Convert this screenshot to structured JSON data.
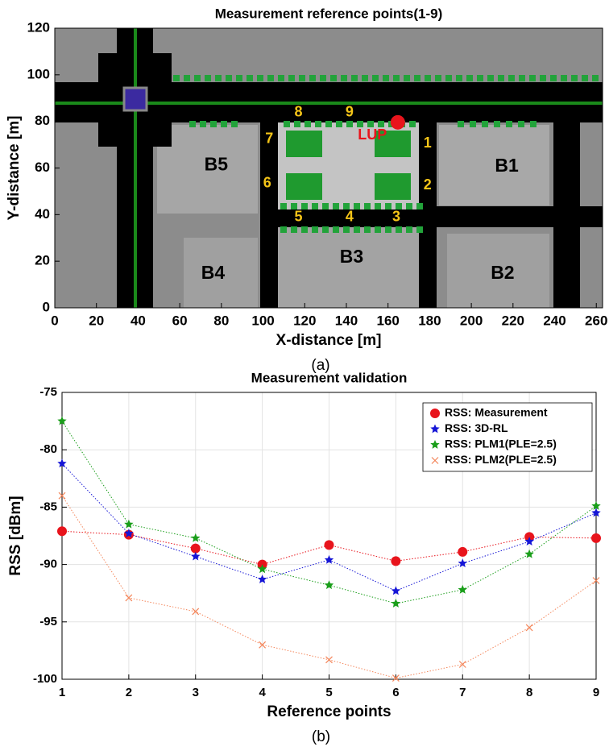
{
  "chart_data": [
    {
      "type": "map",
      "title": "Measurement reference points(1-9)",
      "xlabel": "X-distance [m]",
      "ylabel": "Y-distance [m]",
      "caption": "(a)",
      "xlim": [
        0,
        263
      ],
      "ylim": [
        0,
        120
      ],
      "xticks": [
        0,
        20,
        40,
        60,
        80,
        100,
        120,
        140,
        160,
        180,
        200,
        220,
        240,
        260
      ],
      "yticks": [
        0,
        20,
        40,
        60,
        80,
        100,
        120
      ],
      "annotations": [
        {
          "text": "B5",
          "x": 77.5,
          "y": 61,
          "color": "#000000"
        },
        {
          "text": "B1",
          "x": 217,
          "y": 60.5,
          "color": "#000000"
        },
        {
          "text": "B4",
          "x": 76,
          "y": 14.5,
          "color": "#000000"
        },
        {
          "text": "B2",
          "x": 215,
          "y": 14.5,
          "color": "#000000"
        },
        {
          "text": "B3",
          "x": 142.5,
          "y": 21.5,
          "color": "#000000"
        },
        {
          "text": "1",
          "x": 179,
          "y": 70.5,
          "color": "#f5c518"
        },
        {
          "text": "2",
          "x": 179,
          "y": 52.5,
          "color": "#f5c518"
        },
        {
          "text": "3",
          "x": 164,
          "y": 38.8,
          "color": "#f5c518"
        },
        {
          "text": "4",
          "x": 141.5,
          "y": 38.8,
          "color": "#f5c518"
        },
        {
          "text": "5",
          "x": 117,
          "y": 38.8,
          "color": "#f5c518"
        },
        {
          "text": "6",
          "x": 102,
          "y": 53.3,
          "color": "#f5c518"
        },
        {
          "text": "7",
          "x": 103,
          "y": 72.3,
          "color": "#f5c518"
        },
        {
          "text": "8",
          "x": 117,
          "y": 83.7,
          "color": "#f5c518"
        },
        {
          "text": "9",
          "x": 141.5,
          "y": 83.7,
          "color": "#f5c518"
        },
        {
          "text": "LUP",
          "x": 152.5,
          "y": 74,
          "color": "#e8141c"
        }
      ],
      "points": [
        {
          "x": 164.7,
          "y": 79.6,
          "color": "#e8141c"
        }
      ]
    },
    {
      "type": "line",
      "title": "Measurement validation",
      "xlabel": "Reference points",
      "ylabel": "RSS [dBm]",
      "caption": "(b)",
      "x": [
        1,
        2,
        3,
        4,
        5,
        6,
        7,
        8,
        9
      ],
      "xlim": [
        1,
        9
      ],
      "xticks": [
        1,
        2,
        3,
        4,
        5,
        6,
        7,
        8,
        9
      ],
      "ylim": [
        -100,
        -75
      ],
      "yticks": [
        -100,
        -95,
        -90,
        -85,
        -80,
        -75
      ],
      "grid": true,
      "legend": "upper right",
      "series": [
        {
          "name": "RSS: Measurement",
          "color": "#e8141c",
          "marker": "circle",
          "values": [
            -87.1,
            -87.4,
            -88.6,
            -90.0,
            -88.3,
            -89.7,
            -88.9,
            -87.6,
            -87.7
          ]
        },
        {
          "name": "RSS: 3D-RL",
          "color": "#1515d6",
          "marker": "star",
          "values": [
            -81.2,
            -87.3,
            -89.3,
            -91.3,
            -89.6,
            -92.3,
            -89.9,
            -88.0,
            -85.5
          ]
        },
        {
          "name": "RSS: PLM1(PLE=2.5)",
          "color": "#1a9e1a",
          "marker": "star",
          "values": [
            -77.5,
            -86.5,
            -87.7,
            -90.4,
            -91.8,
            -93.4,
            -92.2,
            -89.1,
            -84.9
          ]
        },
        {
          "name": "RSS: PLM2(PLE=2.5)",
          "color": "#f4875c",
          "marker": "x",
          "values": [
            -84.0,
            -92.9,
            -94.1,
            -97.0,
            -98.3,
            -99.9,
            -98.7,
            -95.5,
            -91.4
          ]
        }
      ]
    }
  ]
}
